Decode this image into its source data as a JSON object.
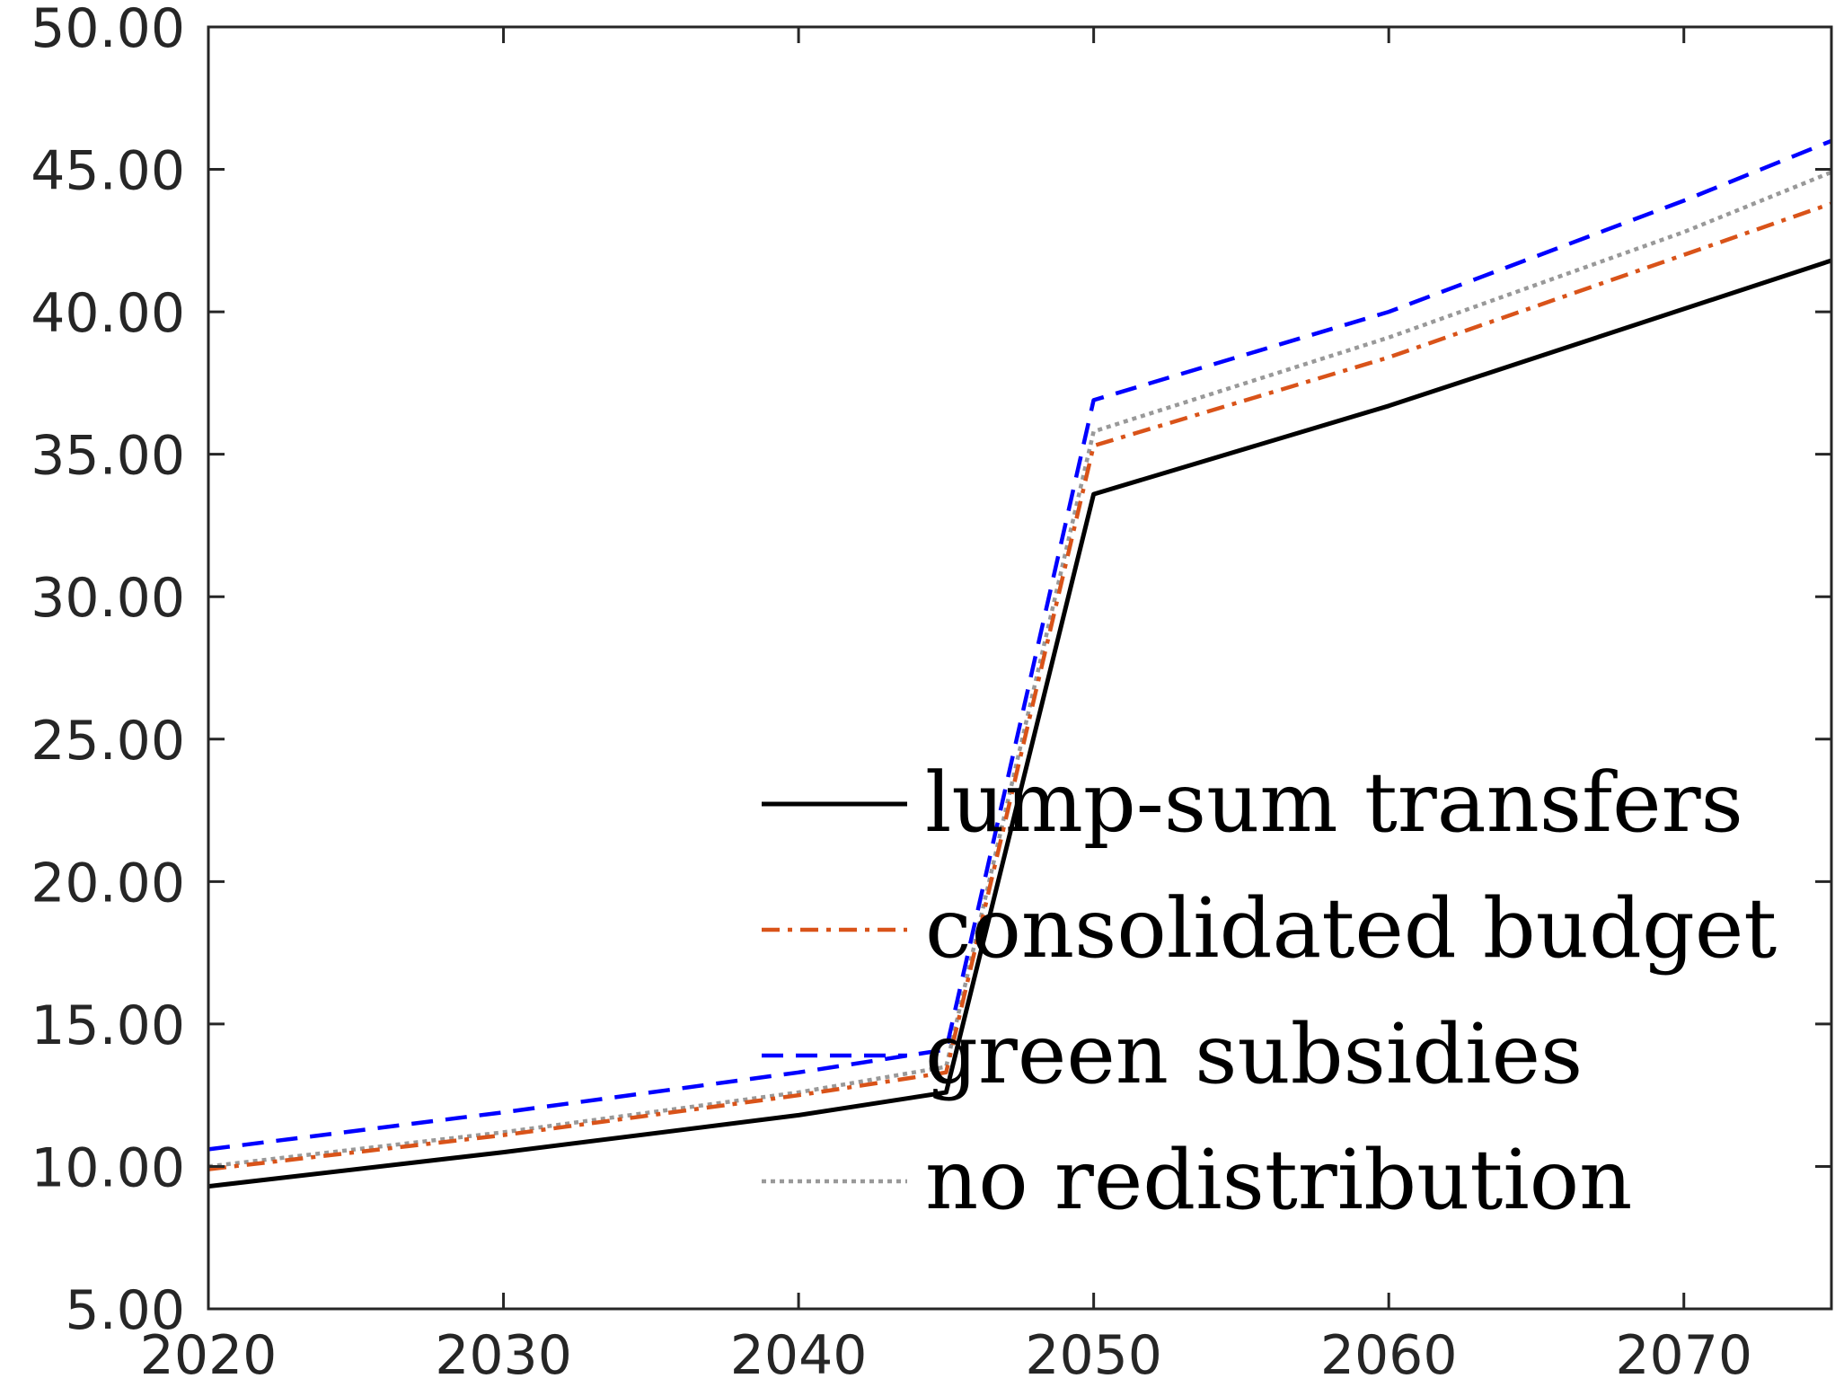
{
  "chart_data": {
    "type": "line",
    "title": "",
    "xlabel": "",
    "ylabel": "",
    "xlim": [
      2020,
      2075
    ],
    "ylim": [
      5,
      50
    ],
    "xticks": [
      2020,
      2030,
      2040,
      2050,
      2060,
      2070
    ],
    "yticks": [
      5,
      10,
      15,
      20,
      25,
      30,
      35,
      40,
      45,
      50
    ],
    "xtick_labels": [
      "2020",
      "2030",
      "2040",
      "2050",
      "2060",
      "2070"
    ],
    "ytick_labels": [
      "5.00",
      "10.00",
      "15.00",
      "20.00",
      "25.00",
      "30.00",
      "35.00",
      "40.00",
      "45.00",
      "50.00"
    ],
    "grid": false,
    "legend_position": "bottom-right",
    "series": [
      {
        "name": "lump-sum transfers",
        "color": "#000000",
        "style": "solid",
        "x": [
          2020,
          2030,
          2040,
          2045,
          2050,
          2060,
          2070,
          2075
        ],
        "y": [
          9.3,
          10.5,
          11.8,
          12.6,
          33.6,
          36.7,
          40.1,
          41.8
        ]
      },
      {
        "name": "consolidated budget",
        "color": "#D95319",
        "style": "dashdot",
        "x": [
          2020,
          2030,
          2040,
          2045,
          2050,
          2060,
          2070,
          2075
        ],
        "y": [
          9.9,
          11.1,
          12.5,
          13.3,
          35.3,
          38.4,
          42.0,
          43.8
        ]
      },
      {
        "name": "green subsidies",
        "color": "#0000FF",
        "style": "dashed",
        "x": [
          2020,
          2030,
          2040,
          2045,
          2050,
          2060,
          2070,
          2075
        ],
        "y": [
          10.6,
          11.9,
          13.3,
          14.1,
          36.9,
          40.0,
          43.9,
          46.0
        ]
      },
      {
        "name": "no redistribution",
        "color": "#999999",
        "style": "dotted",
        "x": [
          2020,
          2030,
          2040,
          2045,
          2050,
          2060,
          2070,
          2075
        ],
        "y": [
          10.0,
          11.2,
          12.6,
          13.5,
          35.8,
          39.1,
          42.8,
          44.9
        ]
      }
    ]
  }
}
